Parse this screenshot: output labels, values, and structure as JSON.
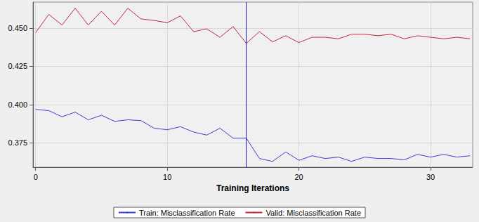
{
  "chart_data": {
    "type": "line",
    "x_label": "Training Iterations",
    "x": [
      0,
      1,
      2,
      3,
      4,
      5,
      6,
      7,
      8,
      9,
      10,
      11,
      12,
      13,
      14,
      15,
      16,
      17,
      18,
      19,
      20,
      21,
      22,
      23,
      24,
      25,
      26,
      27,
      28,
      29,
      30,
      31,
      32,
      33
    ],
    "series": [
      {
        "name": "Train: Misclassification Rate",
        "color": "#3b3bd0",
        "values": [
          0.3968,
          0.396,
          0.392,
          0.395,
          0.39,
          0.393,
          0.389,
          0.39,
          0.3895,
          0.3845,
          0.3835,
          0.3855,
          0.382,
          0.38,
          0.3845,
          0.378,
          0.378,
          0.3647,
          0.3628,
          0.369,
          0.3635,
          0.3665,
          0.3647,
          0.3656,
          0.3628,
          0.3656,
          0.3647,
          0.3647,
          0.3638,
          0.3674,
          0.3656,
          0.3674,
          0.3656,
          0.3665
        ]
      },
      {
        "name": "Valid: Misclassification Rate",
        "color": "#c1283a",
        "values": [
          0.447,
          0.459,
          0.452,
          0.463,
          0.452,
          0.461,
          0.452,
          0.463,
          0.456,
          0.455,
          0.4535,
          0.458,
          0.4477,
          0.4495,
          0.444,
          0.451,
          0.44,
          0.4477,
          0.441,
          0.445,
          0.4405,
          0.444,
          0.444,
          0.443,
          0.446,
          0.446,
          0.445,
          0.446,
          0.443,
          0.445,
          0.444,
          0.443,
          0.444,
          0.443
        ]
      }
    ],
    "xlim": [
      -0.2,
      33.2
    ],
    "xticks": [
      0,
      10,
      20,
      30
    ],
    "ylim": [
      0.359,
      0.467
    ],
    "yticks": [
      {
        "value": 0.375,
        "label": "0.375"
      },
      {
        "value": 0.4,
        "label": "0.400"
      },
      {
        "value": 0.425,
        "label": "0.425"
      },
      {
        "value": 0.45,
        "label": "0.450"
      }
    ],
    "reference_line": {
      "x": 16,
      "color": "#1a1ab0"
    },
    "grid": true,
    "legend": "bottom"
  }
}
